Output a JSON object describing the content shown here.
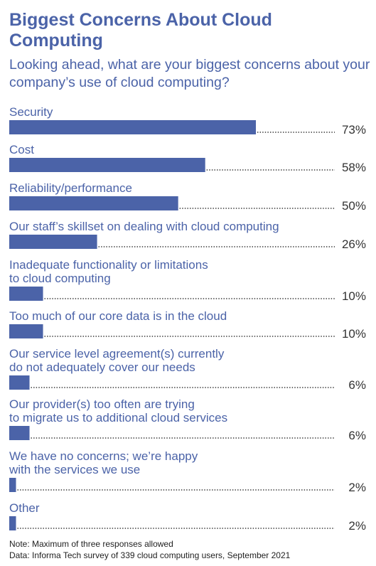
{
  "header": {
    "title": "Biggest Concerns About Cloud Computing",
    "subtitle": "Looking ahead, what are your biggest concerns about your company’s use of cloud computing?"
  },
  "chart_data": {
    "type": "bar",
    "orientation": "horizontal",
    "value_format": "percent",
    "categories": [
      [
        "Security"
      ],
      [
        "Cost"
      ],
      [
        "Reliability/performance"
      ],
      [
        "Our staff’s skillset on dealing with cloud computing"
      ],
      [
        "Inadequate functionality or limitations",
        "to cloud computing"
      ],
      [
        "Too much of our core data is in the cloud"
      ],
      [
        "Our service level agreement(s) currently",
        "do not adequately cover our needs"
      ],
      [
        "Our provider(s) too often are trying",
        "to migrate us to additional cloud services"
      ],
      [
        "We have no concerns; we’re happy",
        "with the services we use"
      ],
      [
        "Other"
      ]
    ],
    "values": [
      73,
      58,
      50,
      26,
      10,
      10,
      6,
      6,
      2,
      2
    ],
    "value_labels": [
      "73%",
      "58%",
      "50%",
      "26%",
      "10%",
      "10%",
      "6%",
      "6%",
      "2%",
      "2%"
    ],
    "bar_color": "#4b63a8",
    "leader_style": "dotted"
  },
  "footer": {
    "note": "Note: Maximum of three responses allowed",
    "source": "Data: Informa Tech survey of 339 cloud computing users, September 2021"
  }
}
